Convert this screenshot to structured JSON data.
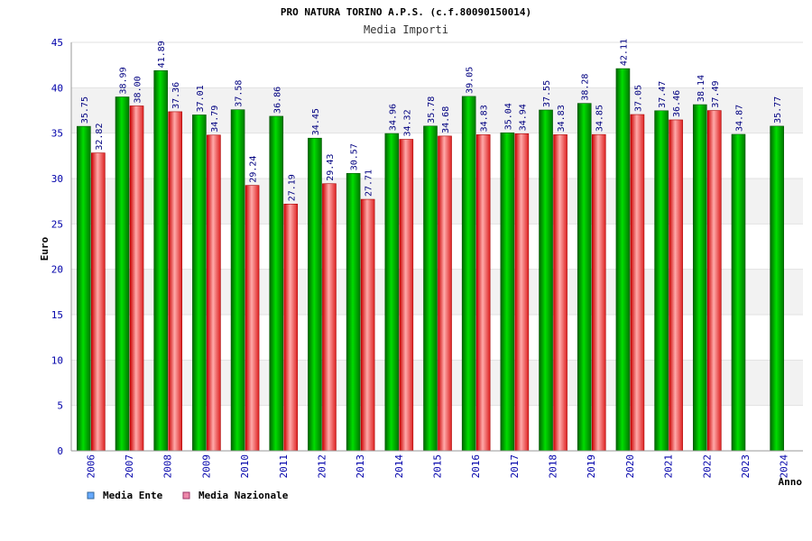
{
  "chart_data": {
    "type": "bar",
    "title": "PRO NATURA TORINO A.P.S. (c.f.80090150014)",
    "subtitle": "Media Importi",
    "ylabel": "Euro",
    "xlabel": "Anno",
    "ylim": [
      0,
      45
    ],
    "yticks": [
      0,
      5,
      10,
      15,
      20,
      25,
      30,
      35,
      40,
      45
    ],
    "categories": [
      "2006",
      "2007",
      "2008",
      "2009",
      "2010",
      "2011",
      "2012",
      "2013",
      "2014",
      "2015",
      "2016",
      "2017",
      "2018",
      "2019",
      "2020",
      "2021",
      "2022",
      "2023",
      "2024"
    ],
    "series": [
      {
        "name": "Media Ente",
        "values": [
          35.75,
          38.99,
          41.89,
          37.01,
          37.58,
          36.86,
          34.45,
          30.57,
          34.96,
          35.78,
          39.05,
          35.04,
          37.55,
          38.28,
          42.11,
          37.47,
          38.14,
          34.87,
          35.77
        ],
        "labels": [
          "35.75",
          "38.99",
          "41.89",
          "37.01",
          "37.58",
          "36.86",
          "34.45",
          "30.57",
          "34.96",
          "35.78",
          "39.05",
          "35.04",
          "37.55",
          "38.28",
          "42.11",
          "37.47",
          "38.14",
          "34.87",
          "35.77"
        ]
      },
      {
        "name": "Media Nazionale",
        "values": [
          32.82,
          38.0,
          37.36,
          34.79,
          29.24,
          27.19,
          29.43,
          27.71,
          34.32,
          34.68,
          34.83,
          34.94,
          34.83,
          34.85,
          37.05,
          36.46,
          37.49,
          null,
          null
        ],
        "labels": [
          "32.82",
          "38.00",
          "37.36",
          "34.79",
          "29.24",
          "27.19",
          "29.43",
          "27.71",
          "34.32",
          "34.68",
          "34.83",
          "34.94",
          "34.83",
          "34.85",
          "37.05",
          "36.46",
          "37.49",
          "",
          ""
        ]
      }
    ],
    "legend": {
      "placement": "bottom-left",
      "items": [
        {
          "label": "Media Ente",
          "color": "#66aaff"
        },
        {
          "label": "Media Nazionale",
          "color": "#ee88aa"
        }
      ]
    },
    "grid": true,
    "colors": {
      "ente_dark": "#006600",
      "ente_light": "#00dd00",
      "naz_dark": "#cc0000",
      "naz_light": "#ffaaaa",
      "band": "#f2f2f2"
    }
  }
}
